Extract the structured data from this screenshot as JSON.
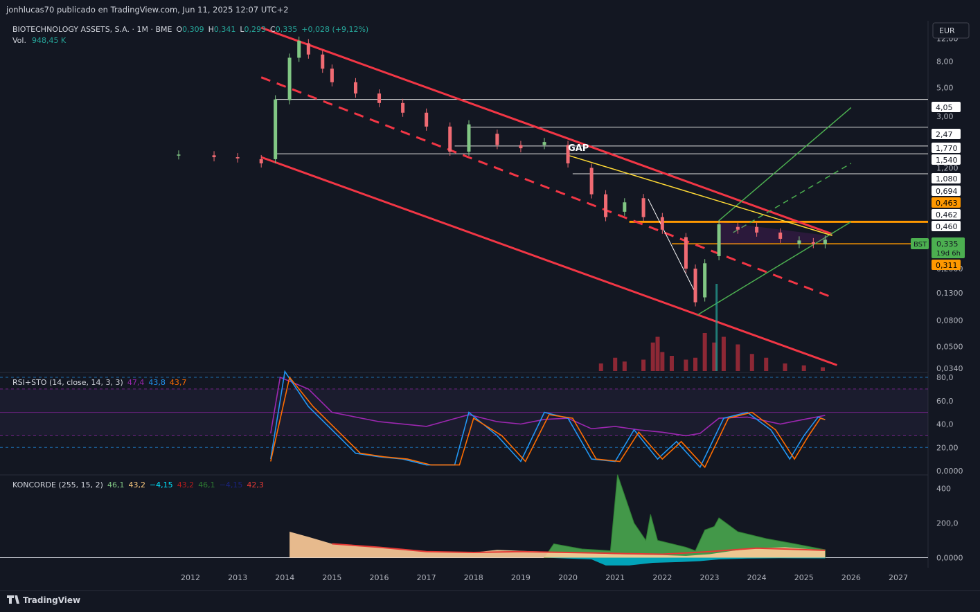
{
  "header": {
    "publisher": "jonhlucas70 publicado en TradingView.com, Jun 11, 2025 12:07 UTC+2",
    "symbol": "BIOTECHNOLOGY ASSETS, S.A. · 1M · BME",
    "o_label": "O",
    "o_value": "0,309",
    "h_label": "H",
    "h_value": "0,341",
    "l_label": "L",
    "l_value": "0,293",
    "c_label": "C",
    "c_value": "0,335",
    "change": "+0,028 (+9,12%)",
    "vol_label": "Vol.",
    "vol_value": "948,45 K",
    "currency": "EUR"
  },
  "footer": {
    "brand": "TradingView"
  },
  "colors": {
    "up": "#81c784",
    "down": "#f06b73",
    "channel": "#f23645",
    "yellow": "#fdd835",
    "orange": "#ff9800",
    "green_channel": "#4caf50",
    "rsi": "#9c27b0",
    "stoch_k": "#2196f3",
    "stoch_d": "#ff6d00",
    "bg": "#131722"
  },
  "chart_data": [
    {
      "type": "candlestick",
      "scale": "log",
      "ylim": [
        0.034,
        14.5
      ],
      "x_ticks": [
        "2012",
        "2013",
        "2014",
        "2015",
        "2016",
        "2017",
        "2018",
        "2019",
        "2020",
        "2021",
        "2022",
        "2023",
        "2024",
        "2025",
        "2026",
        "2027"
      ],
      "y_ticks": [
        "12,00",
        "8,00",
        "5,00",
        "3,00",
        "1,200",
        "0,2000",
        "0,1300",
        "0,0800",
        "0,0500",
        "0,0340"
      ],
      "level_labels": [
        {
          "value": 4.05,
          "label": "4,05"
        },
        {
          "value": 2.47,
          "label": "2,47"
        },
        {
          "value": 1.77,
          "label": "1,770"
        },
        {
          "value": 1.54,
          "label": "1,540"
        },
        {
          "value": 1.08,
          "label": "1,080"
        },
        {
          "value": 0.694,
          "label": "0,694"
        },
        {
          "value": 0.463,
          "label": "0,463",
          "highlight": "orange"
        },
        {
          "value": 0.462,
          "label": "0,462"
        },
        {
          "value": 0.46,
          "label": "0,460"
        },
        {
          "value": 0.311,
          "label": "0,311",
          "highlight": "orange"
        }
      ],
      "last_price": {
        "symbol_tag": "BST",
        "value": "0,335",
        "countdown": "19d 6h"
      },
      "annotation": "GAP",
      "series": [
        {
          "year": 2011.75,
          "open": 1.5,
          "close": 1.52
        },
        {
          "year": 2012.5,
          "open": 1.5,
          "close": 1.45
        },
        {
          "year": 2013.0,
          "open": 1.45,
          "close": 1.42
        },
        {
          "year": 2013.5,
          "open": 1.4,
          "close": 1.3
        },
        {
          "year": 2013.8,
          "open": 1.4,
          "close": 4.05
        },
        {
          "year": 2014.1,
          "open": 4.0,
          "close": 8.5
        },
        {
          "year": 2014.3,
          "open": 8.5,
          "close": 11.5
        },
        {
          "year": 2014.5,
          "open": 11.0,
          "close": 9.0
        },
        {
          "year": 2014.8,
          "open": 9.0,
          "close": 7.0
        },
        {
          "year": 2015.0,
          "open": 7.0,
          "close": 5.5
        },
        {
          "year": 2015.5,
          "open": 5.5,
          "close": 4.5
        },
        {
          "year": 2016.0,
          "open": 4.5,
          "close": 3.8
        },
        {
          "year": 2016.5,
          "open": 3.8,
          "close": 3.2
        },
        {
          "year": 2017.0,
          "open": 3.2,
          "close": 2.5
        },
        {
          "year": 2017.5,
          "open": 2.5,
          "close": 1.6
        },
        {
          "year": 2017.9,
          "open": 1.6,
          "close": 2.6
        },
        {
          "year": 2018.5,
          "open": 2.2,
          "close": 1.8
        },
        {
          "year": 2019.0,
          "open": 1.8,
          "close": 1.7
        },
        {
          "year": 2019.5,
          "open": 1.8,
          "close": 1.9
        },
        {
          "year": 2020.0,
          "open": 1.8,
          "close": 1.3
        },
        {
          "year": 2020.5,
          "open": 1.2,
          "close": 0.75
        },
        {
          "year": 2020.8,
          "open": 0.75,
          "close": 0.5
        },
        {
          "year": 2021.2,
          "open": 0.55,
          "close": 0.65
        },
        {
          "year": 2021.6,
          "open": 0.7,
          "close": 0.5
        },
        {
          "year": 2022.0,
          "open": 0.5,
          "close": 0.4
        },
        {
          "year": 2022.5,
          "open": 0.35,
          "close": 0.2
        },
        {
          "year": 2022.7,
          "open": 0.2,
          "close": 0.11
        },
        {
          "year": 2022.9,
          "open": 0.12,
          "close": 0.22
        },
        {
          "year": 2023.2,
          "open": 0.25,
          "close": 0.44
        },
        {
          "year": 2023.6,
          "open": 0.42,
          "close": 0.4
        },
        {
          "year": 2024.0,
          "open": 0.42,
          "close": 0.38
        },
        {
          "year": 2024.5,
          "open": 0.38,
          "close": 0.34
        },
        {
          "year": 2024.9,
          "open": 0.31,
          "close": 0.33
        },
        {
          "year": 2025.2,
          "open": 0.32,
          "close": 0.31
        },
        {
          "year": 2025.45,
          "open": 0.309,
          "close": 0.335
        }
      ],
      "volume": [
        {
          "year": 2020.7,
          "value": 0.2
        },
        {
          "year": 2021.0,
          "value": 0.35
        },
        {
          "year": 2021.2,
          "value": 0.25
        },
        {
          "year": 2021.6,
          "value": 0.3
        },
        {
          "year": 2021.8,
          "value": 0.75
        },
        {
          "year": 2021.9,
          "value": 0.9
        },
        {
          "year": 2022.0,
          "value": 0.5
        },
        {
          "year": 2022.2,
          "value": 0.4
        },
        {
          "year": 2022.5,
          "value": 0.3
        },
        {
          "year": 2022.7,
          "value": 0.35
        },
        {
          "year": 2022.9,
          "value": 1.0
        },
        {
          "year": 2023.1,
          "value": 0.75
        },
        {
          "year": 2023.3,
          "value": 0.9
        },
        {
          "year": 2023.6,
          "value": 0.7
        },
        {
          "year": 2023.9,
          "value": 0.45
        },
        {
          "year": 2024.2,
          "value": 0.35
        },
        {
          "year": 2024.6,
          "value": 0.2
        },
        {
          "year": 2025.0,
          "value": 0.15
        },
        {
          "year": 2025.4,
          "value": 0.1
        }
      ]
    },
    {
      "type": "line",
      "name": "RSI+STO (14, close, 14, 3, 3)",
      "legend_values": [
        "47,4",
        "43,8",
        "43,7"
      ],
      "ylim": [
        0,
        80
      ],
      "y_ticks": [
        "80,0",
        "60,0",
        "40,0",
        "20,00",
        "0,0000"
      ],
      "series": [
        {
          "name": "RSI",
          "color": "#9c27b0",
          "points": [
            [
              2013.7,
              32
            ],
            [
              2013.9,
              80
            ],
            [
              2014.5,
              70
            ],
            [
              2015.0,
              50
            ],
            [
              2016.0,
              42
            ],
            [
              2017.0,
              38
            ],
            [
              2017.9,
              48
            ],
            [
              2018.5,
              42
            ],
            [
              2019.0,
              40
            ],
            [
              2019.5,
              44
            ],
            [
              2020.0,
              45
            ],
            [
              2020.5,
              36
            ],
            [
              2021.0,
              38
            ],
            [
              2021.5,
              35
            ],
            [
              2022.0,
              33
            ],
            [
              2022.5,
              30
            ],
            [
              2022.8,
              32
            ],
            [
              2023.2,
              45
            ],
            [
              2023.8,
              46
            ],
            [
              2024.5,
              40
            ],
            [
              2025.0,
              44
            ],
            [
              2025.45,
              47.4
            ]
          ]
        },
        {
          "name": "%K",
          "color": "#2196f3",
          "points": [
            [
              2013.7,
              10
            ],
            [
              2014.0,
              85
            ],
            [
              2014.5,
              55
            ],
            [
              2015.0,
              35
            ],
            [
              2015.5,
              15
            ],
            [
              2016.0,
              12
            ],
            [
              2016.5,
              10
            ],
            [
              2017.0,
              5
            ],
            [
              2017.6,
              5
            ],
            [
              2017.9,
              50
            ],
            [
              2018.5,
              30
            ],
            [
              2019.0,
              8
            ],
            [
              2019.5,
              50
            ],
            [
              2020.0,
              45
            ],
            [
              2020.5,
              10
            ],
            [
              2021.0,
              8
            ],
            [
              2021.4,
              35
            ],
            [
              2021.9,
              10
            ],
            [
              2022.3,
              25
            ],
            [
              2022.8,
              3
            ],
            [
              2023.3,
              45
            ],
            [
              2023.8,
              50
            ],
            [
              2024.3,
              35
            ],
            [
              2024.7,
              10
            ],
            [
              2025.0,
              30
            ],
            [
              2025.3,
              46
            ],
            [
              2025.45,
              43.8
            ]
          ]
        },
        {
          "name": "%D",
          "color": "#ff6d00",
          "points": [
            [
              2013.7,
              8
            ],
            [
              2014.1,
              80
            ],
            [
              2014.6,
              55
            ],
            [
              2015.1,
              35
            ],
            [
              2015.6,
              15
            ],
            [
              2016.1,
              12
            ],
            [
              2016.6,
              10
            ],
            [
              2017.1,
              5
            ],
            [
              2017.7,
              5
            ],
            [
              2018.0,
              45
            ],
            [
              2018.6,
              30
            ],
            [
              2019.1,
              8
            ],
            [
              2019.6,
              48
            ],
            [
              2020.1,
              45
            ],
            [
              2020.6,
              10
            ],
            [
              2021.1,
              8
            ],
            [
              2021.5,
              33
            ],
            [
              2022.0,
              10
            ],
            [
              2022.4,
              25
            ],
            [
              2022.9,
              3
            ],
            [
              2023.4,
              45
            ],
            [
              2023.9,
              50
            ],
            [
              2024.4,
              35
            ],
            [
              2024.8,
              10
            ],
            [
              2025.1,
              30
            ],
            [
              2025.35,
              45
            ],
            [
              2025.45,
              43.7
            ]
          ]
        }
      ]
    },
    {
      "type": "area",
      "name": "KONCORDE (255, 15, 2)",
      "legend_values": [
        "46,1",
        "43,2",
        "−4,15",
        "43,2",
        "46,1",
        "−4,15",
        "42,3"
      ],
      "ylim": [
        -50,
        470
      ],
      "y_ticks": [
        "400",
        "200,0",
        "0,0000"
      ],
      "series": [
        {
          "name": "green",
          "color": "#4caf50",
          "points": [
            [
              2019.5,
              0
            ],
            [
              2019.7,
              80
            ],
            [
              2020.3,
              50
            ],
            [
              2020.9,
              40
            ],
            [
              2021.05,
              480
            ],
            [
              2021.4,
              200
            ],
            [
              2021.65,
              100
            ],
            [
              2021.75,
              250
            ],
            [
              2021.9,
              100
            ],
            [
              2022.5,
              60
            ],
            [
              2022.7,
              40
            ],
            [
              2022.9,
              160
            ],
            [
              2023.1,
              180
            ],
            [
              2023.2,
              230
            ],
            [
              2023.6,
              150
            ],
            [
              2024.2,
              110
            ],
            [
              2024.8,
              80
            ],
            [
              2025.45,
              46.1
            ]
          ]
        },
        {
          "name": "peach",
          "color": "#ffcc99",
          "points": [
            [
              2014.1,
              150
            ],
            [
              2014.5,
              120
            ],
            [
              2015.0,
              80
            ],
            [
              2016.0,
              60
            ],
            [
              2017.0,
              35
            ],
            [
              2018.0,
              30
            ],
            [
              2018.5,
              45
            ],
            [
              2019.5,
              35
            ],
            [
              2020.5,
              25
            ],
            [
              2021.0,
              20
            ],
            [
              2022.0,
              15
            ],
            [
              2022.5,
              10
            ],
            [
              2023.0,
              20
            ],
            [
              2023.5,
              40
            ],
            [
              2024.0,
              55
            ],
            [
              2024.6,
              60
            ],
            [
              2025.45,
              43.2
            ]
          ]
        },
        {
          "name": "blue",
          "color": "#00bcd4",
          "points": [
            [
              2019.5,
              0
            ],
            [
              2020.5,
              -10
            ],
            [
              2020.8,
              -45
            ],
            [
              2021.3,
              -45
            ],
            [
              2021.8,
              -30
            ],
            [
              2022.4,
              -25
            ],
            [
              2022.8,
              -20
            ],
            [
              2023.2,
              -10
            ],
            [
              2023.8,
              -5
            ],
            [
              2024.5,
              -3
            ],
            [
              2025.45,
              -4.15
            ]
          ]
        },
        {
          "name": "red",
          "color": "#e53935",
          "points": [
            [
              2015.0,
              80
            ],
            [
              2016.0,
              60
            ],
            [
              2017.0,
              35
            ],
            [
              2018.0,
              30
            ],
            [
              2019.0,
              35
            ],
            [
              2020.0,
              30
            ],
            [
              2021.0,
              25
            ],
            [
              2022.0,
              20
            ],
            [
              2023.0,
              35
            ],
            [
              2024.0,
              55
            ],
            [
              2025.45,
              42.3
            ]
          ]
        }
      ]
    }
  ]
}
